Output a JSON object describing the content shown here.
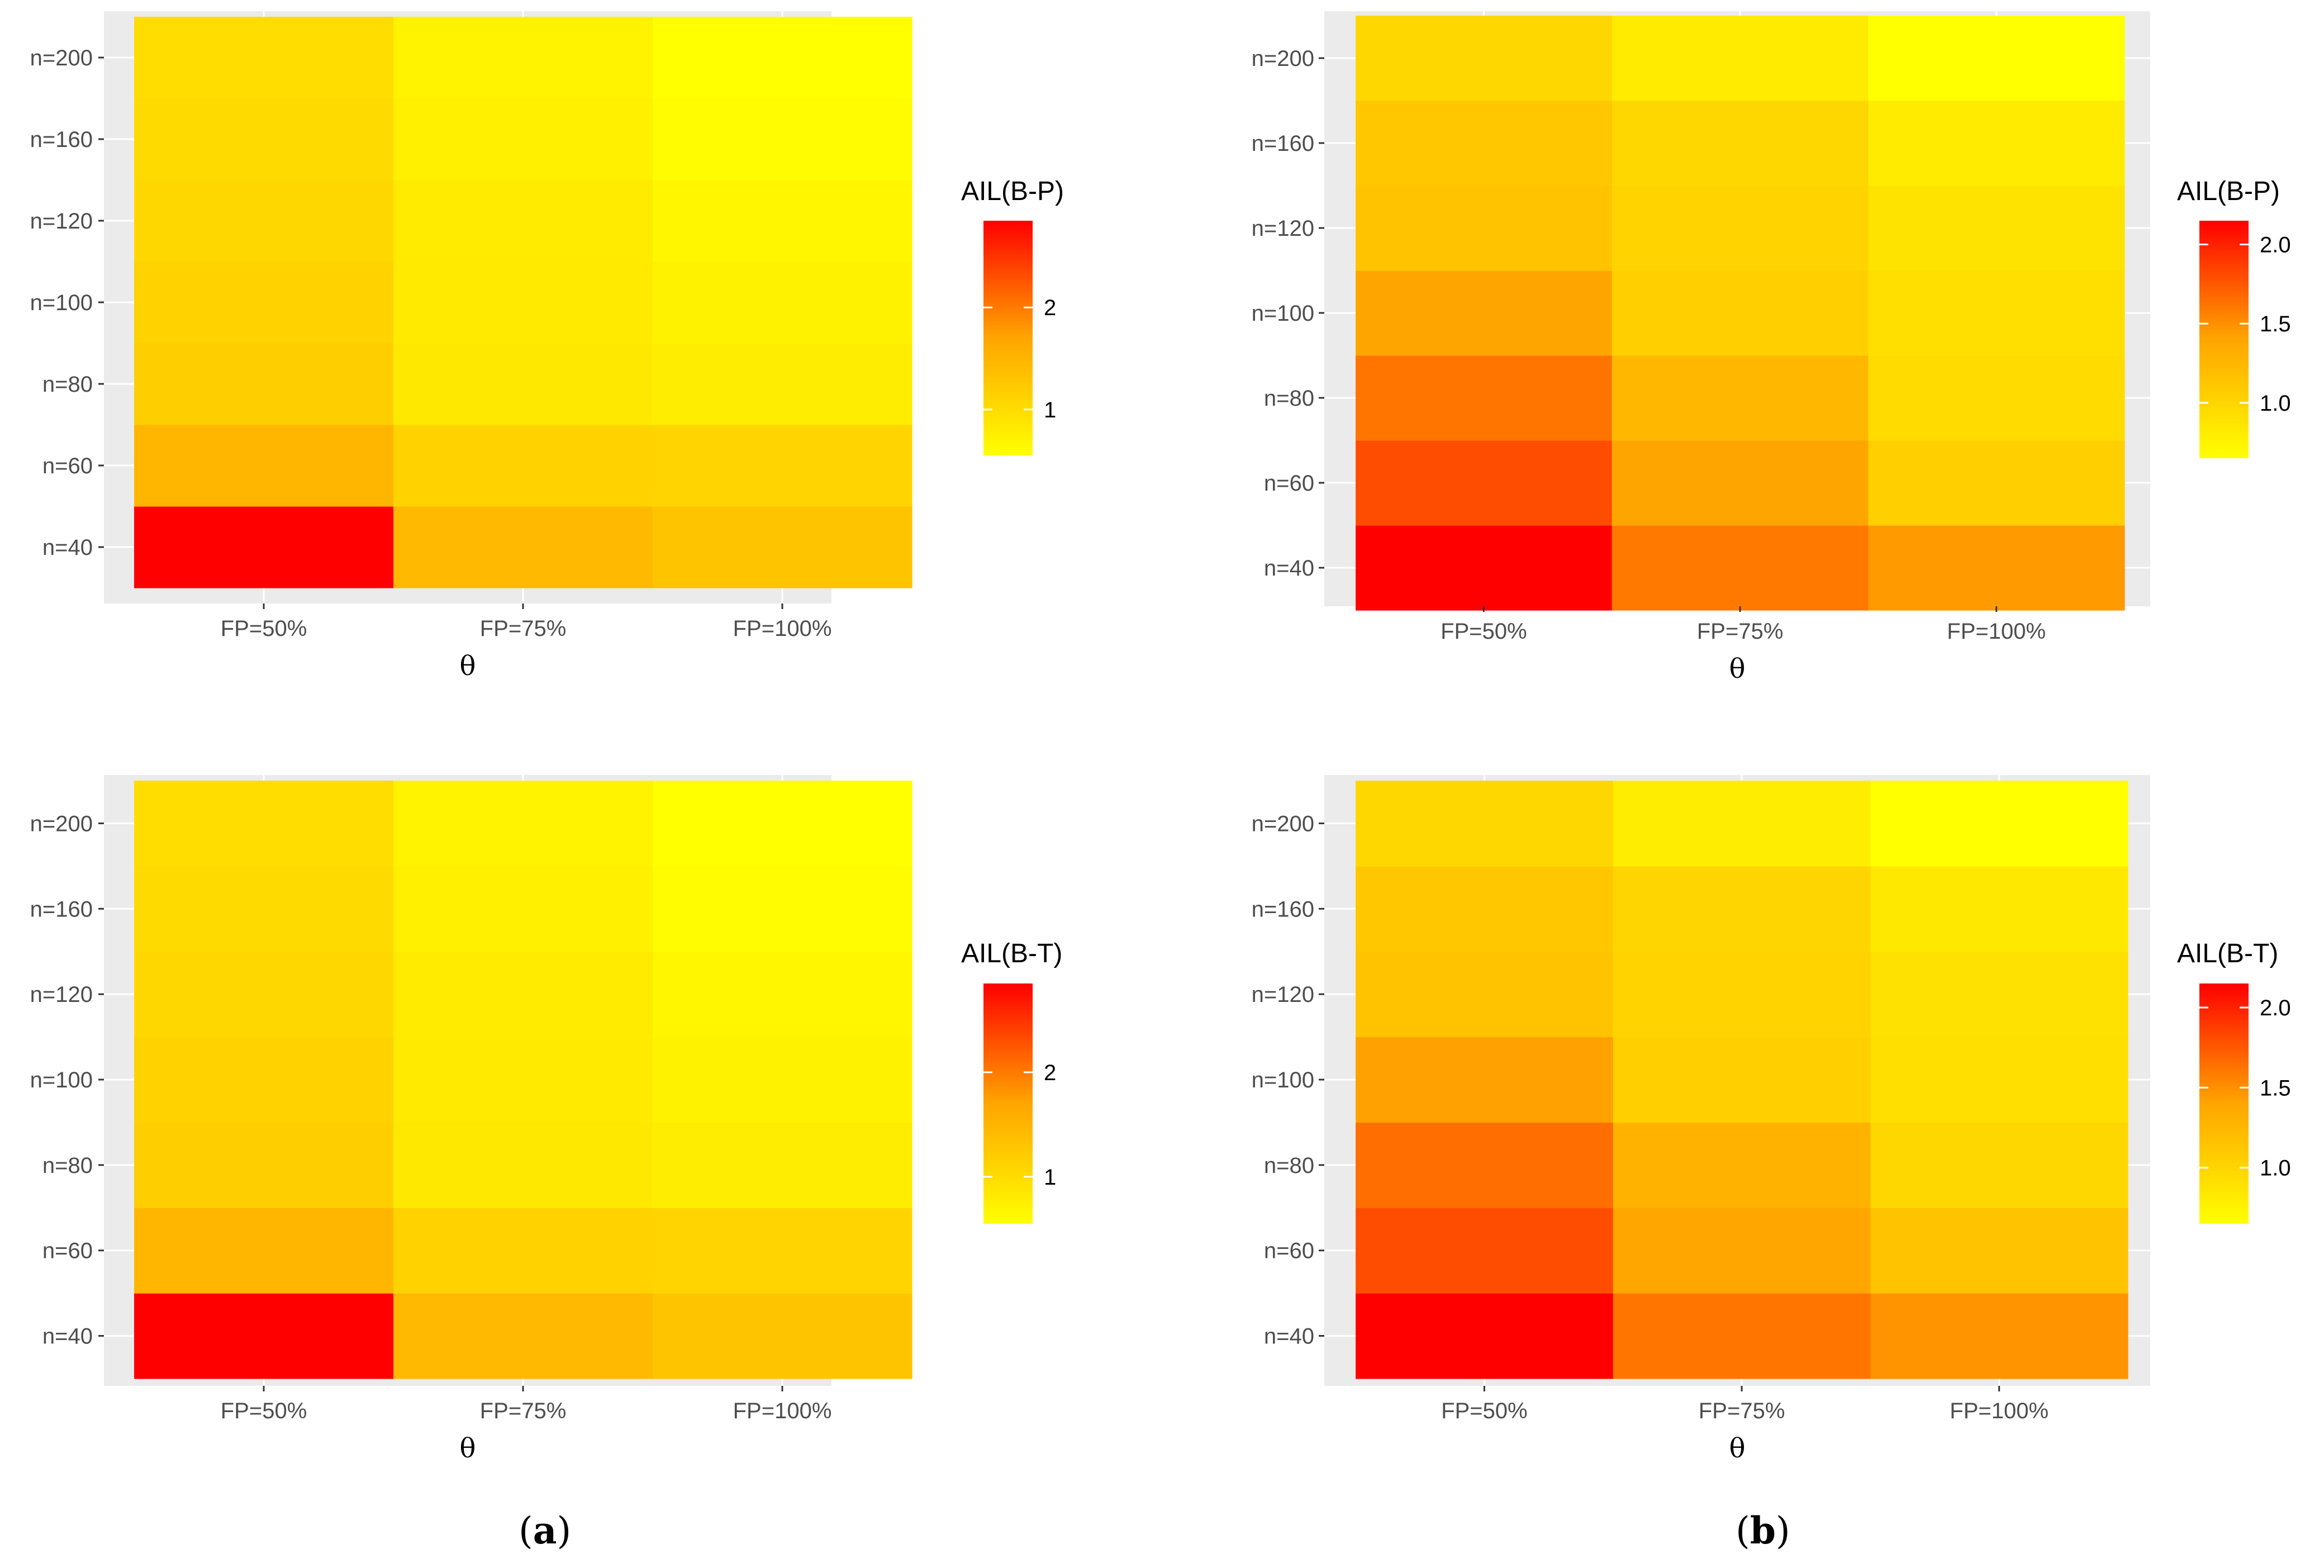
{
  "colors": {
    "panel_bg": "#EBEBEB",
    "grid": "#FFFFFF",
    "low": "#FFFF00",
    "high": "#FF0000"
  },
  "panel_labels": [
    {
      "open": "(",
      "letter": "a",
      "close": ")"
    },
    {
      "open": "(",
      "letter": "b",
      "close": ")"
    }
  ],
  "chart_data": [
    {
      "id": "top-left",
      "type": "heatmap",
      "xlabel": "θ",
      "categories_x": [
        "FP=50%",
        "FP=75%",
        "FP=100%"
      ],
      "categories_y": [
        "n=40",
        "n=60",
        "n=80",
        "n=100",
        "n=120",
        "n=160",
        "n=200"
      ],
      "legend_title": "AIL(B-P)",
      "legend_ticks": [
        1,
        2
      ],
      "legend_tick_labels": [
        "1",
        "2"
      ],
      "scale_min": 0.55,
      "scale_max": 2.85,
      "values": [
        [
          2.85,
          1.45,
          1.3
        ],
        [
          1.48,
          1.12,
          1.1
        ],
        [
          1.18,
          0.85,
          0.78
        ],
        [
          1.12,
          0.82,
          0.72
        ],
        [
          1.06,
          0.8,
          0.66
        ],
        [
          1.02,
          0.74,
          0.6
        ],
        [
          0.98,
          0.7,
          0.55
        ]
      ]
    },
    {
      "id": "top-right",
      "type": "heatmap",
      "xlabel": "θ",
      "categories_x": [
        "FP=50%",
        "FP=75%",
        "FP=100%"
      ],
      "categories_y": [
        "n=40",
        "n=60",
        "n=80",
        "n=100",
        "n=120",
        "n=160",
        "n=200"
      ],
      "legend_title": "AIL(B-P)",
      "legend_ticks": [
        1.0,
        1.5,
        2.0
      ],
      "legend_tick_labels": [
        "1.0",
        "1.5",
        "2.0"
      ],
      "scale_min": 0.65,
      "scale_max": 2.15,
      "values": [
        [
          2.15,
          1.6,
          1.45
        ],
        [
          1.8,
          1.4,
          1.05
        ],
        [
          1.62,
          1.25,
          0.95
        ],
        [
          1.4,
          1.05,
          0.92
        ],
        [
          1.15,
          1.02,
          0.88
        ],
        [
          1.12,
          0.98,
          0.82
        ],
        [
          0.98,
          0.82,
          0.65
        ]
      ]
    },
    {
      "id": "bottom-left",
      "type": "heatmap",
      "xlabel": "θ",
      "categories_x": [
        "FP=50%",
        "FP=75%",
        "FP=100%"
      ],
      "categories_y": [
        "n=40",
        "n=60",
        "n=80",
        "n=100",
        "n=120",
        "n=160",
        "n=200"
      ],
      "legend_title": "AIL(B-T)",
      "legend_ticks": [
        1,
        2
      ],
      "legend_tick_labels": [
        "1",
        "2"
      ],
      "scale_min": 0.55,
      "scale_max": 2.85,
      "values": [
        [
          2.85,
          1.45,
          1.3
        ],
        [
          1.48,
          1.12,
          1.1
        ],
        [
          1.18,
          0.85,
          0.78
        ],
        [
          1.12,
          0.82,
          0.72
        ],
        [
          1.06,
          0.8,
          0.66
        ],
        [
          1.02,
          0.74,
          0.6
        ],
        [
          0.98,
          0.7,
          0.55
        ]
      ]
    },
    {
      "id": "bottom-right",
      "type": "heatmap",
      "xlabel": "θ",
      "categories_x": [
        "FP=50%",
        "FP=75%",
        "FP=100%"
      ],
      "categories_y": [
        "n=40",
        "n=60",
        "n=80",
        "n=100",
        "n=120",
        "n=160",
        "n=200"
      ],
      "legend_title": "AIL(B-T)",
      "legend_ticks": [
        1.0,
        1.5,
        2.0
      ],
      "legend_tick_labels": [
        "1.0",
        "1.5",
        "2.0"
      ],
      "scale_min": 0.65,
      "scale_max": 2.15,
      "values": [
        [
          2.15,
          1.62,
          1.48
        ],
        [
          1.8,
          1.38,
          1.15
        ],
        [
          1.65,
          1.28,
          0.98
        ],
        [
          1.42,
          1.05,
          0.92
        ],
        [
          1.15,
          1.02,
          0.9
        ],
        [
          1.12,
          1.0,
          0.84
        ],
        [
          0.98,
          0.8,
          0.65
        ]
      ]
    }
  ]
}
